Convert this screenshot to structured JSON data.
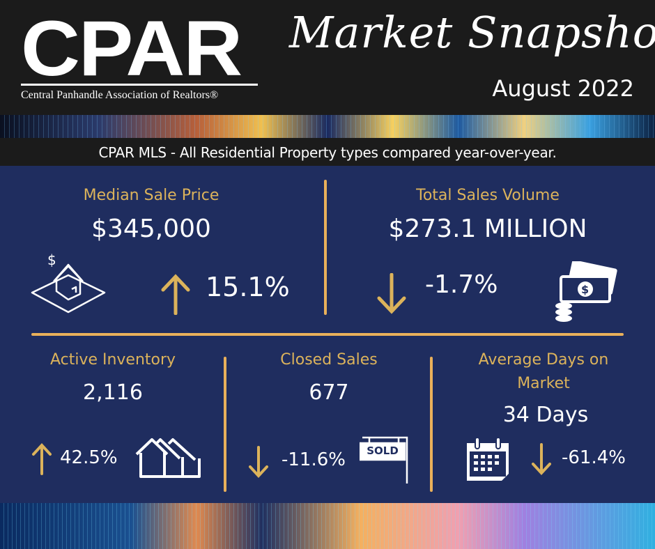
{
  "header": {
    "logo_text": "CPAR",
    "organization": "Central Panhandle Association of Realtors®",
    "title": "Market Snapshot",
    "date": "August 2022"
  },
  "subtitle": "CPAR MLS - All Residential Property types compared year-over-year.",
  "colors": {
    "panel": "#1f2d5f",
    "accent_gold": "#dcb35b",
    "divider": "#e9b05a",
    "header": "#1b1b1b"
  },
  "metrics": {
    "median_sale_price": {
      "label": "Median Sale Price",
      "value": "$345,000",
      "change": "15.1%",
      "direction": "up",
      "icon": "house-dollar-icon"
    },
    "total_sales_volume": {
      "label": "Total Sales Volume",
      "value": "$273.1 MILLION",
      "change": "-1.7%",
      "direction": "down",
      "icon": "money-stack-icon"
    },
    "active_inventory": {
      "label": "Active Inventory",
      "value": "2,116",
      "change": "42.5%",
      "direction": "up",
      "icon": "houses-icon"
    },
    "closed_sales": {
      "label": "Closed Sales",
      "value": "677",
      "change": "-11.6%",
      "direction": "down",
      "icon": "sold-sign-icon",
      "sign_text": "SOLD"
    },
    "average_days_on_market": {
      "label_line1": "Average Days on",
      "label_line2": "Market",
      "value": "34 Days",
      "change": "-61.4%",
      "direction": "down",
      "icon": "calendar-icon"
    }
  }
}
